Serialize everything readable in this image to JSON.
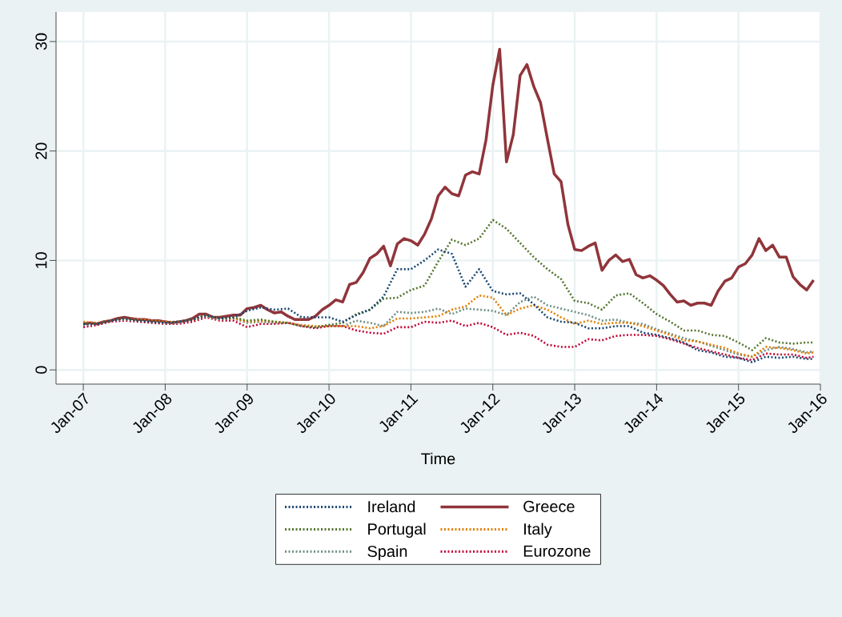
{
  "chart_data": {
    "type": "line",
    "xlabel": "Time",
    "xlim": [
      "2006-09",
      "2016-01"
    ],
    "ylim": [
      -1.3,
      32.7
    ],
    "xticks": [
      {
        "value": "2007-01",
        "label": "Jan-07"
      },
      {
        "value": "2008-01",
        "label": "Jan-08"
      },
      {
        "value": "2009-01",
        "label": "Jan-09"
      },
      {
        "value": "2010-01",
        "label": "Jan-10"
      },
      {
        "value": "2011-01",
        "label": "Jan-11"
      },
      {
        "value": "2012-01",
        "label": "Jan-12"
      },
      {
        "value": "2013-01",
        "label": "Jan-13"
      },
      {
        "value": "2014-01",
        "label": "Jan-14"
      },
      {
        "value": "2015-01",
        "label": "Jan-15"
      },
      {
        "value": "2016-01",
        "label": "Jan-16"
      }
    ],
    "yticks": [
      0,
      10,
      20,
      30
    ],
    "grid": true,
    "legend": "bottom",
    "x": [
      "2007-01",
      "2007-03",
      "2007-05",
      "2007-07",
      "2007-09",
      "2007-11",
      "2008-01",
      "2008-03",
      "2008-05",
      "2008-07",
      "2008-09",
      "2008-11",
      "2009-01",
      "2009-03",
      "2009-05",
      "2009-07",
      "2009-09",
      "2009-11",
      "2010-01",
      "2010-03",
      "2010-05",
      "2010-07",
      "2010-09",
      "2010-11",
      "2011-01",
      "2011-03",
      "2011-05",
      "2011-07",
      "2011-09",
      "2011-11",
      "2012-01",
      "2012-03",
      "2012-05",
      "2012-07",
      "2012-09",
      "2012-11",
      "2013-01",
      "2013-03",
      "2013-05",
      "2013-07",
      "2013-09",
      "2013-11",
      "2014-01",
      "2014-03",
      "2014-05",
      "2014-07",
      "2014-09",
      "2014-11",
      "2015-01",
      "2015-03",
      "2015-05",
      "2015-07",
      "2015-09",
      "2015-11",
      "2015-12"
    ],
    "series": [
      {
        "name": "Ireland",
        "color": "#1a476f",
        "line_style": "dotted",
        "values": [
          4.2,
          4.2,
          4.5,
          4.7,
          4.5,
          4.4,
          4.3,
          4.4,
          4.6,
          5.0,
          4.7,
          4.8,
          5.4,
          5.7,
          5.5,
          5.6,
          4.8,
          4.8,
          4.8,
          4.4,
          5.0,
          5.5,
          6.7,
          9.2,
          9.2,
          10.0,
          11.0,
          10.6,
          7.6,
          9.2,
          7.2,
          6.9,
          7.0,
          6.0,
          4.8,
          4.4,
          4.3,
          3.8,
          3.8,
          4.0,
          4.0,
          3.4,
          3.2,
          2.9,
          2.5,
          1.8,
          1.6,
          1.2,
          1.1,
          0.7,
          1.2,
          1.1,
          1.2,
          1.0,
          1.0
        ]
      },
      {
        "name": "Greece",
        "color": "#90353b",
        "line_style": "solid",
        "x": [
          "2007-01",
          "2007-02",
          "2007-03",
          "2007-04",
          "2007-05",
          "2007-06",
          "2007-07",
          "2007-08",
          "2007-09",
          "2007-10",
          "2007-11",
          "2007-12",
          "2008-01",
          "2008-02",
          "2008-03",
          "2008-04",
          "2008-05",
          "2008-06",
          "2008-07",
          "2008-08",
          "2008-09",
          "2008-10",
          "2008-11",
          "2008-12",
          "2009-01",
          "2009-02",
          "2009-03",
          "2009-04",
          "2009-05",
          "2009-06",
          "2009-07",
          "2009-08",
          "2009-09",
          "2009-10",
          "2009-11",
          "2009-12",
          "2010-01",
          "2010-02",
          "2010-03",
          "2010-04",
          "2010-05",
          "2010-06",
          "2010-07",
          "2010-08",
          "2010-09",
          "2010-10",
          "2010-11",
          "2010-12",
          "2011-01",
          "2011-02",
          "2011-03",
          "2011-04",
          "2011-05",
          "2011-06",
          "2011-07",
          "2011-08",
          "2011-09",
          "2011-10",
          "2011-11",
          "2011-12",
          "2012-01",
          "2012-02",
          "2012-03",
          "2012-04",
          "2012-05",
          "2012-06",
          "2012-07",
          "2012-08",
          "2012-09",
          "2012-10",
          "2012-11",
          "2012-12",
          "2013-01",
          "2013-02",
          "2013-03",
          "2013-04",
          "2013-05",
          "2013-06",
          "2013-07",
          "2013-08",
          "2013-09",
          "2013-10",
          "2013-11",
          "2013-12",
          "2014-01",
          "2014-02",
          "2014-03",
          "2014-04",
          "2014-05",
          "2014-06",
          "2014-07",
          "2014-08",
          "2014-09",
          "2014-10",
          "2014-11",
          "2014-12",
          "2015-01",
          "2015-02",
          "2015-03",
          "2015-04",
          "2015-05",
          "2015-06",
          "2015-07",
          "2015-08",
          "2015-09",
          "2015-10",
          "2015-11",
          "2015-12"
        ],
        "values": [
          4.2,
          4.3,
          4.2,
          4.4,
          4.5,
          4.7,
          4.8,
          4.7,
          4.6,
          4.6,
          4.5,
          4.5,
          4.4,
          4.3,
          4.4,
          4.5,
          4.7,
          5.1,
          5.1,
          4.8,
          4.8,
          4.9,
          5.0,
          5.0,
          5.6,
          5.7,
          5.9,
          5.5,
          5.2,
          5.3,
          4.9,
          4.6,
          4.6,
          4.6,
          4.9,
          5.5,
          5.9,
          6.4,
          6.2,
          7.8,
          8.0,
          8.9,
          10.2,
          10.6,
          11.3,
          9.5,
          11.5,
          12.0,
          11.8,
          11.4,
          12.4,
          13.8,
          15.9,
          16.7,
          16.1,
          15.9,
          17.8,
          18.1,
          17.9,
          21.0,
          26.0,
          29.3,
          19.0,
          21.5,
          26.9,
          27.9,
          25.9,
          24.4,
          21.1,
          17.9,
          17.2,
          13.3,
          11.0,
          10.9,
          11.3,
          11.6,
          9.1,
          10.0,
          10.5,
          9.9,
          10.1,
          8.7,
          8.4,
          8.6,
          8.2,
          7.7,
          6.9,
          6.2,
          6.3,
          5.9,
          6.1,
          6.1,
          5.9,
          7.2,
          8.1,
          8.4,
          9.4,
          9.7,
          10.5,
          12.0,
          10.9,
          11.4,
          10.3,
          10.3,
          8.5,
          7.8,
          7.3,
          8.2
        ]
      },
      {
        "name": "Portugal",
        "color": "#55752f",
        "line_style": "dotted",
        "values": [
          4.2,
          4.2,
          4.5,
          4.7,
          4.5,
          4.4,
          4.3,
          4.4,
          4.6,
          5.0,
          4.7,
          4.8,
          4.5,
          4.6,
          4.4,
          4.3,
          4.0,
          3.9,
          4.1,
          4.3,
          5.1,
          5.5,
          6.5,
          6.6,
          7.3,
          7.7,
          9.9,
          11.9,
          11.4,
          12.0,
          13.7,
          12.9,
          11.6,
          10.3,
          9.2,
          8.3,
          6.3,
          6.1,
          5.5,
          6.8,
          7.0,
          6.1,
          5.1,
          4.4,
          3.6,
          3.6,
          3.2,
          3.1,
          2.5,
          1.8,
          2.9,
          2.5,
          2.4,
          2.5,
          2.5
        ]
      },
      {
        "name": "Italy",
        "color": "#e37e00",
        "line_style": "dotted",
        "values": [
          4.4,
          4.3,
          4.5,
          4.7,
          4.6,
          4.5,
          4.4,
          4.4,
          4.6,
          5.0,
          4.7,
          4.7,
          4.4,
          4.5,
          4.4,
          4.3,
          4.1,
          4.0,
          4.0,
          4.0,
          4.0,
          3.8,
          4.0,
          4.7,
          4.7,
          4.8,
          4.9,
          5.5,
          5.8,
          6.8,
          6.6,
          5.0,
          5.6,
          5.9,
          5.5,
          4.8,
          4.2,
          4.5,
          4.2,
          4.3,
          4.3,
          4.0,
          3.6,
          3.2,
          2.7,
          2.6,
          2.3,
          2.0,
          1.5,
          1.2,
          2.1,
          2.0,
          1.8,
          1.5,
          1.6
        ]
      },
      {
        "name": "Spain",
        "color": "#6e8e84",
        "line_style": "dotted",
        "values": [
          4.1,
          4.2,
          4.5,
          4.6,
          4.5,
          4.4,
          4.3,
          4.3,
          4.6,
          4.9,
          4.6,
          4.7,
          4.3,
          4.4,
          4.3,
          4.3,
          4.0,
          3.9,
          4.1,
          4.0,
          4.5,
          4.3,
          4.0,
          5.3,
          5.2,
          5.3,
          5.6,
          5.1,
          5.6,
          5.5,
          5.4,
          5.0,
          6.2,
          6.7,
          5.9,
          5.6,
          5.3,
          5.0,
          4.5,
          4.6,
          4.3,
          4.2,
          3.7,
          3.3,
          2.9,
          2.6,
          2.2,
          1.8,
          1.4,
          1.2,
          1.8,
          2.1,
          1.9,
          1.6,
          1.7
        ]
      },
      {
        "name": "Eurozone",
        "color": "#c10534",
        "line_style": "dotted",
        "values": [
          3.9,
          4.1,
          4.4,
          4.5,
          4.4,
          4.3,
          4.2,
          4.2,
          4.4,
          4.8,
          4.5,
          4.5,
          3.9,
          4.2,
          4.2,
          4.3,
          4.0,
          3.8,
          4.0,
          4.0,
          3.6,
          3.4,
          3.3,
          3.9,
          3.9,
          4.4,
          4.3,
          4.5,
          4.0,
          4.3,
          3.9,
          3.2,
          3.4,
          3.1,
          2.3,
          2.1,
          2.1,
          2.8,
          2.7,
          3.1,
          3.2,
          3.2,
          3.1,
          2.8,
          2.4,
          2.0,
          1.7,
          1.4,
          1.1,
          0.9,
          1.5,
          1.4,
          1.4,
          1.1,
          1.2
        ]
      }
    ]
  }
}
